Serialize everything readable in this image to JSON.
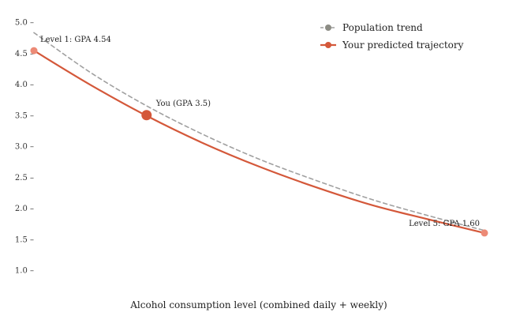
{
  "chart_data": {
    "type": "line",
    "title": "",
    "xlabel": "Alcohol consumption level (combined daily + weekly)",
    "ylabel": "",
    "xlim": [
      1,
      5
    ],
    "ylim": [
      1.0,
      5.0
    ],
    "yticks": [
      1.0,
      1.5,
      2.0,
      2.5,
      3.0,
      3.5,
      4.0,
      4.5,
      5.0
    ],
    "ytick_labels": [
      "1.0 –",
      "1.5 –",
      "2.0 –",
      "2.5 –",
      "3.0 –",
      "3.5 –",
      "4.0 –",
      "4.5 –",
      "5.0 –"
    ],
    "grid": false,
    "legend": {
      "position": "top-right",
      "entries": [
        "Population trend",
        "Your predicted trajectory"
      ]
    },
    "series": [
      {
        "name": "Population trend",
        "color": "#a0a0a0",
        "style": "dashed",
        "x": [
          1.0,
          1.5,
          2.0,
          2.5,
          3.0,
          3.5,
          4.0,
          4.5,
          5.0
        ],
        "y": [
          4.83,
          4.19,
          3.65,
          3.19,
          2.79,
          2.45,
          2.14,
          1.88,
          1.64
        ]
      },
      {
        "name": "Your predicted trajectory",
        "color": "#d4583a",
        "style": "solid",
        "x": [
          1.0,
          1.5,
          2.0,
          2.5,
          3.0,
          3.5,
          4.0,
          4.5,
          5.0
        ],
        "y": [
          4.54,
          3.99,
          3.49,
          3.05,
          2.67,
          2.34,
          2.05,
          1.82,
          1.6
        ]
      }
    ],
    "points": [
      {
        "label": "Level 1: GPA 4.54",
        "x": 1.0,
        "y": 4.54,
        "kind": "endpoint"
      },
      {
        "label": "You (GPA 3.5)",
        "x": 2.0,
        "y": 3.5,
        "kind": "you"
      },
      {
        "label": "Level 5: GPA 1.60",
        "x": 5.0,
        "y": 1.6,
        "kind": "endpoint"
      }
    ],
    "colors": {
      "accent": "#d4583a",
      "endpoint": "#ec8a76",
      "trend": "#a0a0a0",
      "trend_marker": "#8c8c84"
    }
  }
}
